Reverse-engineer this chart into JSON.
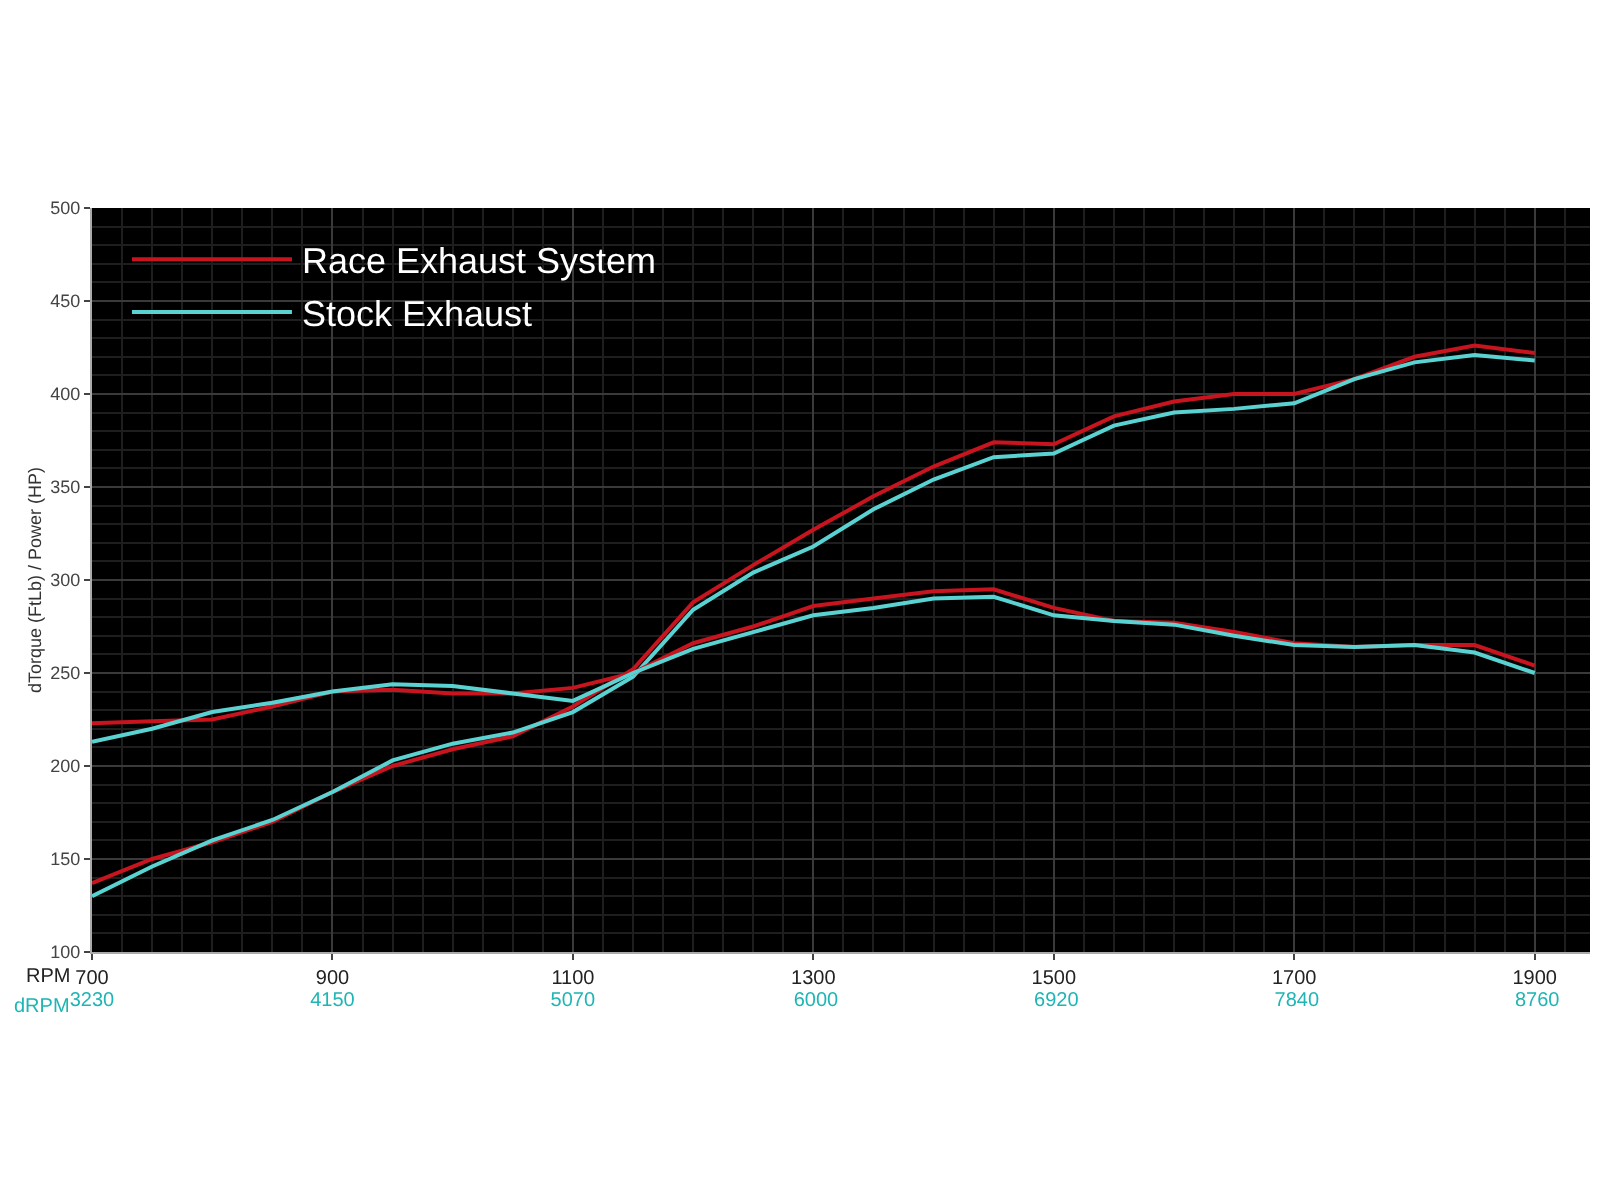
{
  "chart_data": {
    "type": "line",
    "xlabel": "RPM",
    "ylabel": "dTorque (FtLb) / Power (HP)",
    "x2label": "dRPM",
    "x": [
      700,
      750,
      800,
      850,
      900,
      950,
      1000,
      1050,
      1100,
      1150,
      1200,
      1250,
      1300,
      1350,
      1400,
      1450,
      1500,
      1550,
      1600,
      1650,
      1700,
      1750,
      1800,
      1850,
      1900
    ],
    "series": [
      {
        "name": "Race Exhaust System",
        "color": "#c8141e",
        "values": [
          137,
          150,
          159,
          170,
          186,
          200,
          209,
          216,
          232,
          252,
          288,
          308,
          327,
          345,
          361,
          374,
          373,
          388,
          396,
          400,
          400,
          408,
          420,
          426,
          422
        ]
      },
      {
        "name": "Stock Exhaust",
        "color": "#5ad2d2",
        "values": [
          130,
          146,
          160,
          171,
          186,
          203,
          212,
          218,
          229,
          248,
          284,
          304,
          318,
          338,
          354,
          366,
          368,
          383,
          390,
          392,
          395,
          408,
          417,
          421,
          418
        ]
      },
      {
        "color": "#c8141e",
        "values": [
          223,
          224,
          225,
          232,
          240,
          241,
          239,
          239,
          242,
          250,
          266,
          275,
          286,
          290,
          294,
          295,
          285,
          278,
          277,
          272,
          266,
          264,
          265,
          265,
          254
        ]
      },
      {
        "color": "#5ad2d2",
        "values": [
          213,
          220,
          229,
          234,
          240,
          244,
          243,
          239,
          235,
          250,
          263,
          272,
          281,
          285,
          290,
          291,
          281,
          278,
          276,
          270,
          265,
          264,
          265,
          261,
          250
        ]
      }
    ],
    "xlim": [
      700,
      1946
    ],
    "xticks": [
      700,
      900,
      1100,
      1300,
      1500,
      1700,
      1900
    ],
    "x2lim": [
      3230,
      8962
    ],
    "x2ticks": [
      3230,
      4150,
      5070,
      6000,
      6920,
      7840,
      8760
    ],
    "ylim": [
      100,
      500
    ],
    "yticks": [
      100,
      150,
      200,
      250,
      300,
      350,
      400,
      450,
      500
    ],
    "grid": true,
    "legend": "top left",
    "marker": "none",
    "line_style": "solid"
  }
}
